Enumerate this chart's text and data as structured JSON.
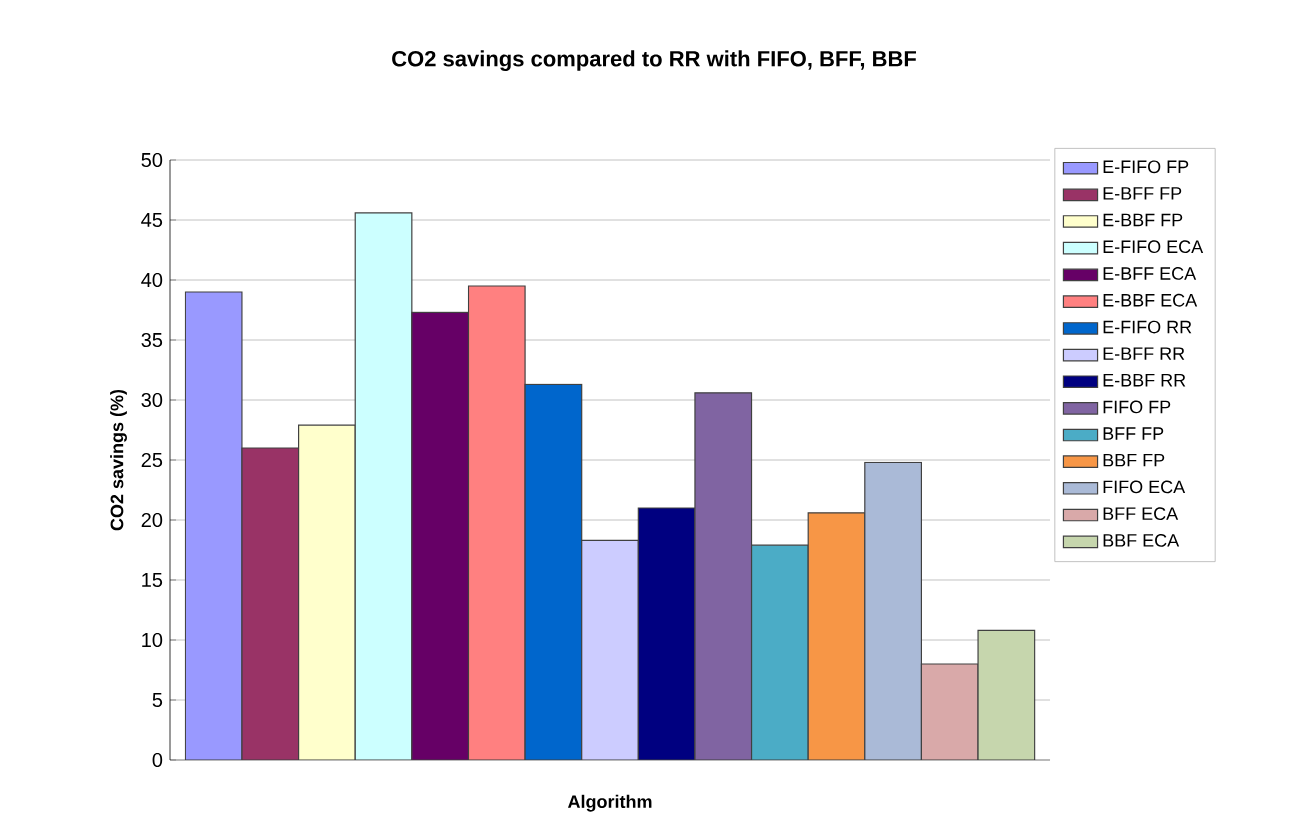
{
  "chart_data": {
    "type": "bar",
    "title": "CO2 savings compared to RR with FIFO, BFF, BBF",
    "xlabel": "Algorithm",
    "ylabel": "CO2 savings (%)",
    "categories": [
      null
    ],
    "series": [
      {
        "name": "E-FIFO FP",
        "color": "#9999ff",
        "values": [
          39
        ]
      },
      {
        "name": "E-BFF FP",
        "color": "#993366",
        "values": [
          26
        ]
      },
      {
        "name": "E-BBF FP",
        "color": "#ffffcc",
        "values": [
          27.9
        ]
      },
      {
        "name": "E-FIFO ECA",
        "color": "#ccffff",
        "values": [
          45.6
        ]
      },
      {
        "name": "E-BFF ECA",
        "color": "#660066",
        "values": [
          37.3
        ]
      },
      {
        "name": "E-BBF ECA",
        "color": "#ff8080",
        "values": [
          39.5
        ]
      },
      {
        "name": "E-FIFO RR",
        "color": "#0066cc",
        "values": [
          31.3
        ]
      },
      {
        "name": "E-BFF RR",
        "color": "#ccccff",
        "values": [
          18.3
        ]
      },
      {
        "name": "E-BBF RR",
        "color": "#000080",
        "values": [
          21
        ]
      },
      {
        "name": "FIFO FP",
        "color": "#8064a2",
        "values": [
          30.6
        ]
      },
      {
        "name": "BFF FP",
        "color": "#4bacc6",
        "values": [
          17.9
        ]
      },
      {
        "name": "BBF FP",
        "color": "#f79646",
        "values": [
          20.6
        ]
      },
      {
        "name": "FIFO ECA",
        "color": "#aabad7",
        "values": [
          24.8
        ]
      },
      {
        "name": "BFF ECA",
        "color": "#d9a9a9",
        "values": [
          8
        ]
      },
      {
        "name": "BBF ECA",
        "color": "#c6d6ad",
        "values": [
          10.8
        ]
      }
    ],
    "ylim": [
      0,
      50
    ],
    "yticks": [
      0,
      5,
      10,
      15,
      20,
      25,
      30,
      35,
      40,
      45,
      50
    ],
    "grid": "y",
    "legend": "right",
    "tick_labels": "y"
  }
}
